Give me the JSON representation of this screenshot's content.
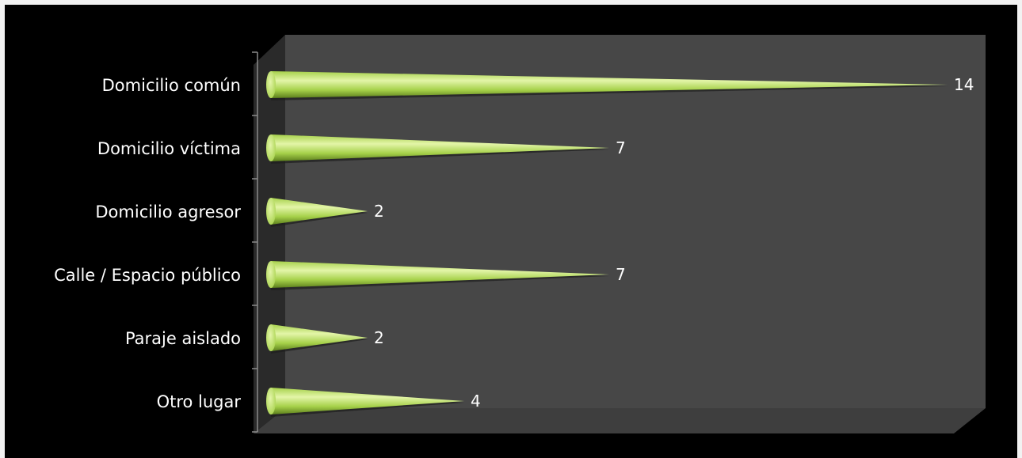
{
  "chart_data": {
    "type": "bar",
    "orientation": "horizontal",
    "categories": [
      "Domicilio común",
      "Domicilio víctima",
      "Domicilio agresor",
      "Calle / Espacio público",
      "Paraje aislado",
      "Otro lugar"
    ],
    "values": [
      14,
      7,
      2,
      7,
      2,
      4
    ],
    "xlim": [
      0,
      14
    ],
    "grid": false,
    "style": "3d-cone",
    "colors": {
      "bar": "#a6d14a",
      "bar_highlight": "#e3f5a8",
      "bar_shadow": "#5c7f1c",
      "plot_floor": "#3e3e3e",
      "plot_back": "#474747",
      "background": "#000000",
      "text": "#ffffff"
    }
  }
}
